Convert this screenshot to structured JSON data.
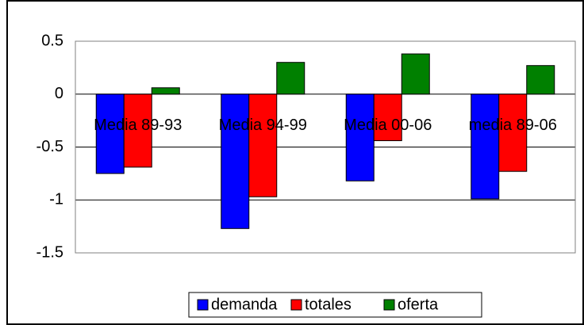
{
  "chart_data": {
    "type": "bar",
    "categories": [
      "Media 89-93",
      "Media 94-99",
      "Media 00-06",
      "media 89-06"
    ],
    "series": [
      {
        "name": "demanda",
        "color": "#0000ff",
        "values": [
          -0.75,
          -1.27,
          -0.82,
          -0.99
        ]
      },
      {
        "name": "totales",
        "color": "#ff0000",
        "values": [
          -0.69,
          -0.97,
          -0.44,
          -0.73
        ]
      },
      {
        "name": "oferta",
        "color": "#008000",
        "values": [
          0.06,
          0.3,
          0.38,
          0.27
        ]
      }
    ],
    "ylim": [
      -1.5,
      0.5
    ],
    "yticks": [
      {
        "value": 0.5,
        "label": "0.5"
      },
      0,
      {
        "value": -0.5,
        "label": "-0.5"
      },
      -1,
      {
        "value": -1.5,
        "label": "-1.5"
      }
    ],
    "grid": true,
    "legend": "bottom"
  }
}
